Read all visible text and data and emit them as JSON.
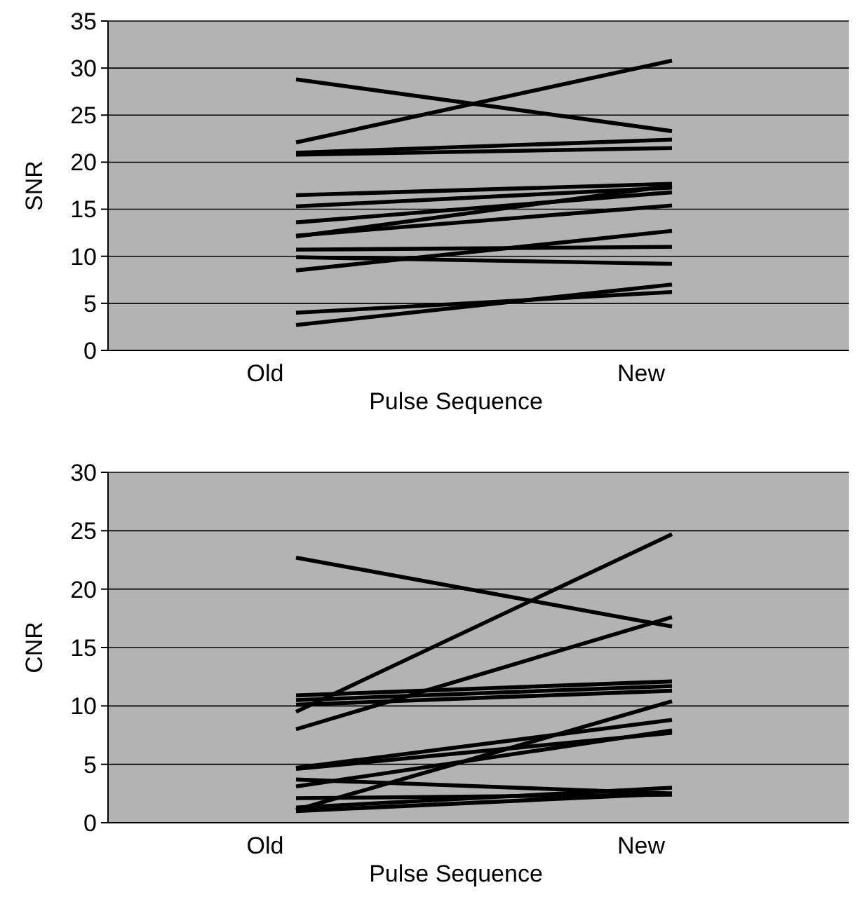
{
  "chart_data": [
    {
      "type": "line",
      "xlabel": "Pulse Sequence",
      "ylabel": "SNR",
      "categories": [
        "Old",
        "New"
      ],
      "ylim": [
        0,
        35
      ],
      "yticks": [
        0,
        5,
        10,
        15,
        20,
        25,
        30,
        35
      ],
      "grid": "y",
      "series": [
        {
          "color": "#000000",
          "values": [
            28.8,
            23.3
          ]
        },
        {
          "color": "#000000",
          "values": [
            22.1,
            30.8
          ]
        },
        {
          "color": "#000000",
          "values": [
            21.0,
            22.4
          ]
        },
        {
          "color": "#000000",
          "values": [
            20.8,
            21.5
          ]
        },
        {
          "color": "#000000",
          "values": [
            16.5,
            17.7
          ]
        },
        {
          "color": "#000000",
          "values": [
            15.3,
            17.3
          ]
        },
        {
          "color": "#000000",
          "values": [
            13.6,
            16.8
          ]
        },
        {
          "color": "#000000",
          "values": [
            12.1,
            17.5
          ]
        },
        {
          "color": "#000000",
          "values": [
            12.2,
            15.4
          ]
        },
        {
          "color": "#000000",
          "values": [
            10.7,
            11.0
          ]
        },
        {
          "color": "#000000",
          "values": [
            9.9,
            9.2
          ]
        },
        {
          "color": "#000000",
          "values": [
            8.5,
            12.7
          ]
        },
        {
          "color": "#000000",
          "values": [
            4.0,
            6.2
          ]
        },
        {
          "color": "#000000",
          "values": [
            2.7,
            7.0
          ]
        }
      ]
    },
    {
      "type": "line",
      "xlabel": "Pulse Sequence",
      "ylabel": "CNR",
      "categories": [
        "Old",
        "New"
      ],
      "ylim": [
        0,
        30
      ],
      "yticks": [
        0,
        5,
        10,
        15,
        20,
        25,
        30
      ],
      "grid": "y",
      "series": [
        {
          "color": "#000000",
          "values": [
            22.7,
            16.8
          ]
        },
        {
          "color": "#000000",
          "values": [
            9.5,
            24.7
          ]
        },
        {
          "color": "#000000",
          "values": [
            8.0,
            17.6
          ]
        },
        {
          "color": "#000000",
          "values": [
            10.9,
            12.1
          ]
        },
        {
          "color": "#000000",
          "values": [
            10.1,
            11.3
          ]
        },
        {
          "color": "#000000",
          "values": [
            10.5,
            11.7
          ]
        },
        {
          "color": "#000000",
          "values": [
            4.7,
            8.8
          ]
        },
        {
          "color": "#000000",
          "values": [
            4.6,
            7.7
          ]
        },
        {
          "color": "#000000",
          "values": [
            3.1,
            7.9
          ]
        },
        {
          "color": "#000000",
          "values": [
            1.1,
            10.4
          ]
        },
        {
          "color": "#000000",
          "values": [
            3.7,
            2.5
          ]
        },
        {
          "color": "#000000",
          "values": [
            2.1,
            2.4
          ]
        },
        {
          "color": "#000000",
          "values": [
            1.3,
            3.0
          ]
        },
        {
          "color": "#000000",
          "values": [
            1.0,
            2.5
          ]
        }
      ]
    }
  ]
}
